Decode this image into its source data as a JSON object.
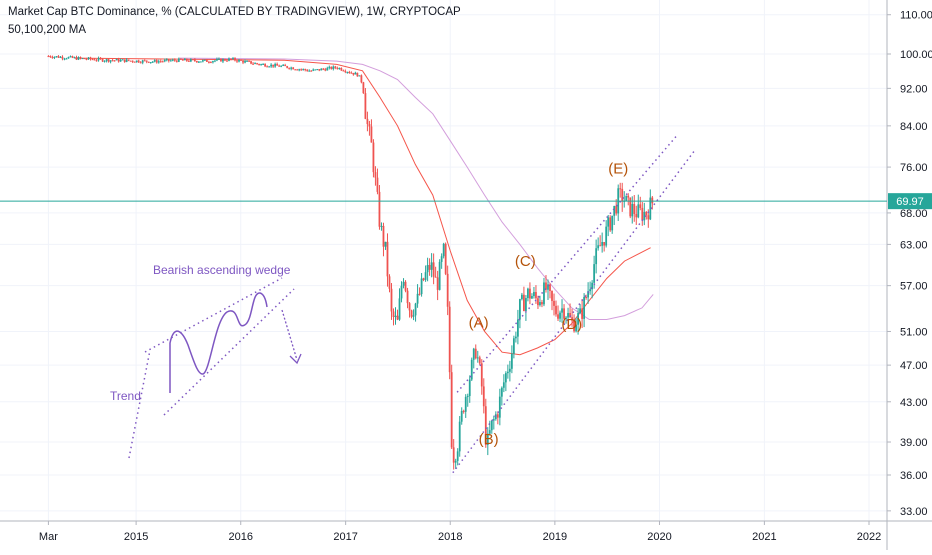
{
  "header": {
    "title": "Market Cap BTC Dominance, % (CALCULATED BY TRADINGVIEW), 1W, CRYPTOCAP",
    "indicator": "50,100,200 MA"
  },
  "colors": {
    "up": "#26a69a",
    "down": "#ef5350",
    "ma_50": "#f44336",
    "ma_100": "#e57373",
    "ma_200": "#ce93d8",
    "annotation": "#7e57c2",
    "wave_label": "#b45309",
    "price_line": "#26a69a",
    "grid": "#f0f3fa"
  },
  "chart_data": {
    "type": "candlestick",
    "title": "Market Cap BTC Dominance, % (CALCULATED BY TRADINGVIEW), 1W, CRYPTOCAP",
    "y_scale": "log",
    "ylim": [
      31.5,
      114
    ],
    "xlim": [
      "2014-01-01",
      "2022-05-01"
    ],
    "grid": true,
    "y_ticks": [
      "110.00",
      "100.00",
      "92.00",
      "84.00",
      "76.00",
      "68.00",
      "63.00",
      "57.00",
      "51.00",
      "47.00",
      "43.00",
      "39.00",
      "36.00",
      "33.00"
    ],
    "x_ticks": [
      {
        "label": "Mar",
        "date": "2014-03-01"
      },
      {
        "label": "2015",
        "date": "2015-01-01"
      },
      {
        "label": "2016",
        "date": "2016-01-01"
      },
      {
        "label": "2017",
        "date": "2017-01-01"
      },
      {
        "label": "2018",
        "date": "2018-01-01"
      },
      {
        "label": "2019",
        "date": "2019-01-01"
      },
      {
        "label": "2020",
        "date": "2020-01-01"
      },
      {
        "label": "2021",
        "date": "2021-01-01"
      },
      {
        "label": "2022",
        "date": "2022-01-01"
      }
    ],
    "last_price": "69.97",
    "path": [
      [
        "2014-03-01",
        99.5
      ],
      [
        "2014-06-01",
        99.0
      ],
      [
        "2014-09-01",
        98.6
      ],
      [
        "2014-12-01",
        98.4
      ],
      [
        "2015-03-01",
        98.2
      ],
      [
        "2015-06-01",
        98.5
      ],
      [
        "2015-09-01",
        98.3
      ],
      [
        "2015-12-01",
        98.7
      ],
      [
        "2016-03-01",
        97.6
      ],
      [
        "2016-06-01",
        97.0
      ],
      [
        "2016-09-01",
        96.0
      ],
      [
        "2016-12-01",
        96.8
      ],
      [
        "2017-02-15",
        95.0
      ],
      [
        "2017-03-01",
        93.0
      ],
      [
        "2017-03-15",
        85.0
      ],
      [
        "2017-04-01",
        80.0
      ],
      [
        "2017-05-01",
        66.0
      ],
      [
        "2017-05-20",
        62.0
      ],
      [
        "2017-06-10",
        53.0
      ],
      [
        "2017-07-01",
        52.0
      ],
      [
        "2017-07-20",
        59.0
      ],
      [
        "2017-08-15",
        53.5
      ],
      [
        "2017-09-10",
        55.0
      ],
      [
        "2017-10-01",
        58.0
      ],
      [
        "2017-10-25",
        60.0
      ],
      [
        "2017-11-15",
        57.0
      ],
      [
        "2017-12-10",
        62.0
      ],
      [
        "2017-12-25",
        52.0
      ],
      [
        "2018-01-08",
        37.5
      ],
      [
        "2018-01-25",
        38.5
      ],
      [
        "2018-02-15",
        42.5
      ],
      [
        "2018-03-05",
        45.0
      ],
      [
        "2018-04-01",
        49.0
      ],
      [
        "2018-04-20",
        45.0
      ],
      [
        "2018-05-08",
        38.5
      ],
      [
        "2018-05-25",
        40.5
      ],
      [
        "2018-06-15",
        42.0
      ],
      [
        "2018-07-10",
        45.5
      ],
      [
        "2018-08-01",
        48.0
      ],
      [
        "2018-09-01",
        54.0
      ],
      [
        "2018-10-01",
        56.0
      ],
      [
        "2018-11-01",
        55.0
      ],
      [
        "2018-12-01",
        56.5
      ],
      [
        "2019-01-01",
        53.5
      ],
      [
        "2019-02-01",
        54.0
      ],
      [
        "2019-03-01",
        52.0
      ],
      [
        "2019-04-01",
        53.0
      ],
      [
        "2019-05-01",
        57.0
      ],
      [
        "2019-05-20",
        60.5
      ],
      [
        "2019-06-10",
        63.0
      ],
      [
        "2019-06-30",
        65.0
      ],
      [
        "2019-07-20",
        67.5
      ],
      [
        "2019-08-10",
        70.5
      ],
      [
        "2019-08-25",
        70.8
      ],
      [
        "2019-09-15",
        69.0
      ],
      [
        "2019-10-15",
        68.0
      ],
      [
        "2019-11-15",
        68.0
      ],
      [
        "2019-12-10",
        69.97
      ]
    ],
    "series": [
      {
        "name": "MA 50",
        "points": [
          [
            "2014-06-01",
            99.0
          ],
          [
            "2016-06-01",
            98.5
          ],
          [
            "2016-12-01",
            97.5
          ],
          [
            "2017-03-01",
            96.0
          ],
          [
            "2017-05-01",
            90.0
          ],
          [
            "2017-07-01",
            84.0
          ],
          [
            "2017-09-01",
            76.5
          ],
          [
            "2017-11-01",
            71.0
          ],
          [
            "2018-01-01",
            62.0
          ],
          [
            "2018-03-01",
            55.0
          ],
          [
            "2018-05-01",
            51.0
          ],
          [
            "2018-07-01",
            48.5
          ],
          [
            "2018-09-01",
            48.2
          ],
          [
            "2018-11-01",
            49.0
          ],
          [
            "2019-01-01",
            50.0
          ],
          [
            "2019-03-01",
            52.0
          ],
          [
            "2019-05-01",
            55.0
          ],
          [
            "2019-07-01",
            58.0
          ],
          [
            "2019-09-01",
            60.5
          ],
          [
            "2019-12-01",
            62.5
          ]
        ]
      },
      {
        "name": "MA 200",
        "points": [
          [
            "2015-06-01",
            99.0
          ],
          [
            "2016-06-01",
            98.8
          ],
          [
            "2016-12-01",
            98.3
          ],
          [
            "2017-03-01",
            97.5
          ],
          [
            "2017-05-01",
            96.0
          ],
          [
            "2017-07-01",
            94.0
          ],
          [
            "2017-09-01",
            90.0
          ],
          [
            "2017-11-01",
            86.5
          ],
          [
            "2018-01-01",
            81.0
          ],
          [
            "2018-03-01",
            76.0
          ],
          [
            "2018-05-01",
            71.0
          ],
          [
            "2018-07-01",
            66.5
          ],
          [
            "2018-09-01",
            63.0
          ],
          [
            "2018-11-01",
            59.5
          ],
          [
            "2019-01-01",
            56.5
          ],
          [
            "2019-03-01",
            54.0
          ],
          [
            "2019-05-01",
            52.5
          ],
          [
            "2019-07-01",
            52.5
          ],
          [
            "2019-09-01",
            53.0
          ],
          [
            "2019-11-01",
            54.0
          ],
          [
            "2019-12-10",
            55.8
          ]
        ]
      }
    ],
    "trendlines": [
      [
        [
          "2018-01-10",
          36.2
        ],
        [
          "2020-05-01",
          79.0
        ]
      ],
      [
        [
          "2018-01-25",
          44.0
        ],
        [
          "2020-03-01",
          82.0
        ]
      ]
    ],
    "annotations": {
      "wave_labels": [
        {
          "text": "(A)",
          "date": "2018-04-10",
          "value": 51.5
        },
        {
          "text": "(B)",
          "date": "2018-05-15",
          "value": 38.8
        },
        {
          "text": "(C)",
          "date": "2018-09-20",
          "value": 59.8
        },
        {
          "text": "(D)",
          "date": "2019-03-01",
          "value": 51.3
        },
        {
          "text": "(E)",
          "date": "2019-08-10",
          "value": 74.8
        }
      ],
      "wedge_title": "Bearish ascending wedge",
      "trend_label": "Trend"
    }
  }
}
